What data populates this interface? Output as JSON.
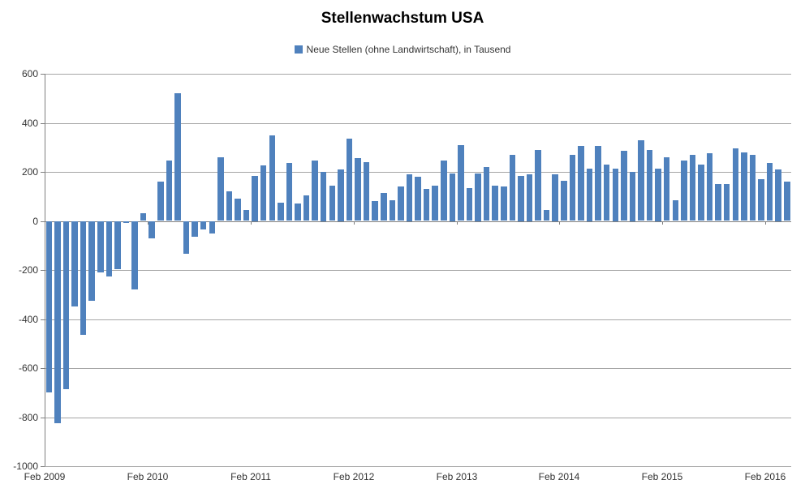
{
  "title": "Stellenwachstum USA",
  "legend": {
    "label": "Neue Stellen (ohne Landwirtschaft), in Tausend",
    "swatch_color": "#4F81BD"
  },
  "chart_data": {
    "type": "bar",
    "title": "Stellenwachstum USA",
    "legend_position": "top",
    "grid": true,
    "background": "#FFFFFF",
    "bar_color": "#4F81BD",
    "gridline_color": "#A6A6A6",
    "axis_color": "#808080",
    "text_color": "#333333",
    "ylim": [
      -1000,
      600
    ],
    "y_tick_interval": 200,
    "y_tick_labels": [
      "600",
      "400",
      "200",
      "0",
      "-200",
      "-400",
      "-600",
      "-800",
      "-1000"
    ],
    "x_ticks": [
      {
        "label": "Feb 2009",
        "index": 0
      },
      {
        "label": "Feb 2010",
        "index": 12
      },
      {
        "label": "Feb 2011",
        "index": 24
      },
      {
        "label": "Feb 2012",
        "index": 36
      },
      {
        "label": "Feb 2013",
        "index": 48
      },
      {
        "label": "Feb 2014",
        "index": 60
      },
      {
        "label": "Feb 2015",
        "index": 72
      },
      {
        "label": "Feb 2016",
        "index": 84
      }
    ],
    "categories": [
      "2009-02",
      "2009-03",
      "2009-04",
      "2009-05",
      "2009-06",
      "2009-07",
      "2009-08",
      "2009-09",
      "2009-10",
      "2009-11",
      "2009-12",
      "2010-01",
      "2010-02",
      "2010-03",
      "2010-04",
      "2010-05",
      "2010-06",
      "2010-07",
      "2010-08",
      "2010-09",
      "2010-10",
      "2010-11",
      "2010-12",
      "2011-01",
      "2011-02",
      "2011-03",
      "2011-04",
      "2011-05",
      "2011-06",
      "2011-07",
      "2011-08",
      "2011-09",
      "2011-10",
      "2011-11",
      "2011-12",
      "2012-01",
      "2012-02",
      "2012-03",
      "2012-04",
      "2012-05",
      "2012-06",
      "2012-07",
      "2012-08",
      "2012-09",
      "2012-10",
      "2012-11",
      "2012-12",
      "2013-01",
      "2013-02",
      "2013-03",
      "2013-04",
      "2013-05",
      "2013-06",
      "2013-07",
      "2013-08",
      "2013-09",
      "2013-10",
      "2013-11",
      "2013-12",
      "2014-01",
      "2014-02",
      "2014-03",
      "2014-04",
      "2014-05",
      "2014-06",
      "2014-07",
      "2014-08",
      "2014-09",
      "2014-10",
      "2014-11",
      "2014-12",
      "2015-01",
      "2015-02",
      "2015-03",
      "2015-04",
      "2015-05",
      "2015-06",
      "2015-07",
      "2015-08",
      "2015-09",
      "2015-10",
      "2015-11",
      "2015-12",
      "2016-01",
      "2016-02",
      "2016-03",
      "2016-04"
    ],
    "series": [
      {
        "name": "Neue Stellen (ohne Landwirtschaft), in Tausend",
        "color": "#4F81BD",
        "values": [
          -700,
          -825,
          -685,
          -350,
          -465,
          -325,
          -210,
          -225,
          -195,
          -8,
          -280,
          30,
          -70,
          160,
          245,
          520,
          -135,
          -65,
          -35,
          -50,
          260,
          120,
          90,
          45,
          185,
          225,
          350,
          75,
          235,
          70,
          105,
          245,
          200,
          145,
          210,
          335,
          255,
          240,
          80,
          115,
          85,
          140,
          190,
          180,
          130,
          145,
          245,
          195,
          310,
          135,
          195,
          220,
          145,
          140,
          270,
          185,
          190,
          290,
          45,
          190,
          165,
          270,
          305,
          215,
          305,
          230,
          215,
          285,
          200,
          330,
          290,
          215,
          260,
          85,
          245,
          270,
          230,
          275,
          150,
          150,
          295,
          280,
          270,
          170,
          235,
          210,
          160
        ]
      }
    ]
  }
}
